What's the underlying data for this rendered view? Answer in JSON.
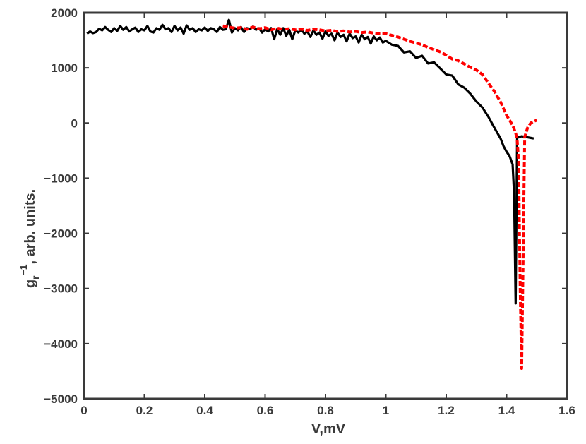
{
  "chart_data": {
    "type": "line",
    "title": "",
    "xlabel": "V,mV",
    "ylabel": {
      "base": "g",
      "subscript": "r",
      "superscript": "−1",
      "rest": ", arb. units."
    },
    "xlim": [
      0,
      1.6
    ],
    "ylim": [
      -5000,
      2000
    ],
    "xticks": [
      0,
      0.2,
      0.4,
      0.6,
      0.8,
      1,
      1.2,
      1.4,
      1.6
    ],
    "yticks": [
      -5000,
      -4000,
      -3000,
      -2000,
      -1000,
      0,
      1000,
      2000
    ],
    "xtick_labels": [
      "0",
      "0.2",
      "0.4",
      "0.6",
      "0.8",
      "1",
      "1.2",
      "1.4",
      "1.6"
    ],
    "ytick_labels": [
      "−5000",
      "−4000",
      "−3000",
      "−2000",
      "−1000",
      "0",
      "1000",
      "2000"
    ],
    "grid": false,
    "legend": "none",
    "series": [
      {
        "color": "#000000",
        "style": "solid",
        "x": [
          0.01,
          0.02,
          0.03,
          0.04,
          0.05,
          0.06,
          0.07,
          0.08,
          0.09,
          0.1,
          0.11,
          0.12,
          0.13,
          0.14,
          0.15,
          0.16,
          0.17,
          0.18,
          0.19,
          0.2,
          0.21,
          0.22,
          0.23,
          0.24,
          0.25,
          0.26,
          0.27,
          0.28,
          0.29,
          0.3,
          0.31,
          0.32,
          0.33,
          0.34,
          0.35,
          0.36,
          0.37,
          0.38,
          0.39,
          0.4,
          0.41,
          0.42,
          0.43,
          0.44,
          0.45,
          0.46,
          0.47,
          0.48,
          0.49,
          0.5,
          0.51,
          0.52,
          0.53,
          0.54,
          0.55,
          0.56,
          0.57,
          0.58,
          0.59,
          0.6,
          0.61,
          0.62,
          0.63,
          0.64,
          0.65,
          0.66,
          0.67,
          0.68,
          0.69,
          0.7,
          0.71,
          0.72,
          0.73,
          0.74,
          0.75,
          0.76,
          0.77,
          0.78,
          0.79,
          0.8,
          0.81,
          0.82,
          0.83,
          0.84,
          0.85,
          0.86,
          0.87,
          0.88,
          0.89,
          0.9,
          0.91,
          0.92,
          0.93,
          0.94,
          0.95,
          0.96,
          0.97,
          0.98,
          0.99,
          1.0,
          1.02,
          1.04,
          1.06,
          1.08,
          1.1,
          1.12,
          1.14,
          1.16,
          1.18,
          1.2,
          1.22,
          1.24,
          1.26,
          1.28,
          1.3,
          1.32,
          1.34,
          1.36,
          1.38,
          1.39,
          1.4,
          1.41,
          1.42,
          1.425,
          1.43,
          1.435,
          1.44,
          1.45,
          1.46,
          1.47,
          1.48,
          1.49
        ],
        "y": [
          1620,
          1660,
          1630,
          1650,
          1710,
          1680,
          1740,
          1690,
          1650,
          1720,
          1670,
          1760,
          1690,
          1740,
          1660,
          1700,
          1730,
          1650,
          1700,
          1680,
          1760,
          1660,
          1640,
          1720,
          1690,
          1780,
          1700,
          1720,
          1650,
          1760,
          1680,
          1730,
          1620,
          1770,
          1690,
          1720,
          1650,
          1700,
          1680,
          1730,
          1670,
          1720,
          1700,
          1650,
          1740,
          1690,
          1700,
          1870,
          1640,
          1720,
          1680,
          1740,
          1650,
          1720,
          1700,
          1750,
          1690,
          1720,
          1640,
          1700,
          1660,
          1720,
          1520,
          1700,
          1600,
          1720,
          1580,
          1690,
          1520,
          1680,
          1640,
          1700,
          1620,
          1660,
          1560,
          1680,
          1600,
          1640,
          1530,
          1660,
          1580,
          1620,
          1500,
          1640,
          1560,
          1600,
          1480,
          1620,
          1540,
          1570,
          1460,
          1600,
          1520,
          1560,
          1440,
          1570,
          1500,
          1550,
          1460,
          1490,
          1420,
          1400,
          1280,
          1300,
          1180,
          1220,
          1080,
          1100,
          990,
          880,
          860,
          700,
          640,
          530,
          390,
          280,
          110,
          -90,
          -280,
          -420,
          -520,
          -600,
          -750,
          -1300,
          -3270,
          -250,
          -260,
          -240,
          -250,
          -260,
          -270,
          -280
        ]
      },
      {
        "color": "#ff0000",
        "style": "dashed",
        "x": [
          0.46,
          0.48,
          0.5,
          0.52,
          0.54,
          0.56,
          0.58,
          0.6,
          0.62,
          0.64,
          0.66,
          0.68,
          0.7,
          0.72,
          0.74,
          0.76,
          0.78,
          0.8,
          0.82,
          0.84,
          0.86,
          0.88,
          0.9,
          0.92,
          0.94,
          0.96,
          0.98,
          1.0,
          1.02,
          1.04,
          1.06,
          1.08,
          1.1,
          1.12,
          1.14,
          1.16,
          1.18,
          1.2,
          1.22,
          1.24,
          1.26,
          1.28,
          1.3,
          1.32,
          1.34,
          1.36,
          1.38,
          1.4,
          1.42,
          1.43,
          1.435,
          1.44,
          1.445,
          1.45,
          1.46,
          1.47,
          1.48,
          1.49,
          1.5
        ],
        "y": [
          1760,
          1740,
          1720,
          1730,
          1700,
          1740,
          1710,
          1730,
          1690,
          1720,
          1700,
          1710,
          1690,
          1700,
          1680,
          1700,
          1690,
          1670,
          1680,
          1660,
          1670,
          1650,
          1660,
          1640,
          1650,
          1630,
          1620,
          1620,
          1590,
          1560,
          1520,
          1480,
          1450,
          1420,
          1370,
          1330,
          1290,
          1230,
          1160,
          1130,
          1070,
          1010,
          960,
          880,
          720,
          570,
          380,
          140,
          -40,
          -180,
          -300,
          -700,
          -3000,
          -4450,
          -250,
          -80,
          0,
          30,
          50
        ]
      }
    ]
  }
}
